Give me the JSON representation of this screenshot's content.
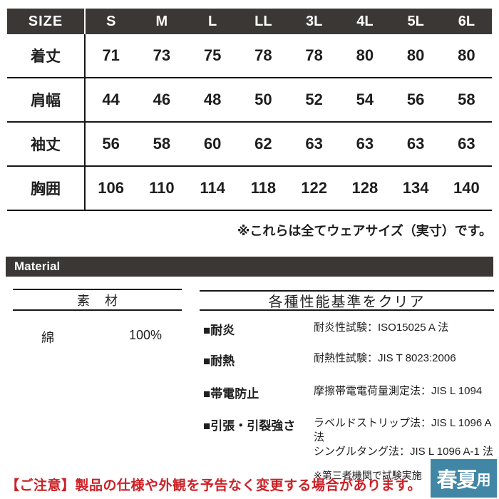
{
  "size_table": {
    "header": [
      "SIZE",
      "S",
      "M",
      "L",
      "LL",
      "3L",
      "4L",
      "5L",
      "6L"
    ],
    "rows": [
      {
        "label": "着丈",
        "values": [
          "71",
          "73",
          "75",
          "78",
          "78",
          "80",
          "80",
          "80"
        ]
      },
      {
        "label": "肩幅",
        "values": [
          "44",
          "46",
          "48",
          "50",
          "52",
          "54",
          "56",
          "58"
        ]
      },
      {
        "label": "袖丈",
        "values": [
          "56",
          "58",
          "60",
          "62",
          "63",
          "63",
          "63",
          "63"
        ]
      },
      {
        "label": "胸囲",
        "values": [
          "106",
          "110",
          "114",
          "118",
          "122",
          "128",
          "134",
          "140"
        ]
      }
    ],
    "note": "※これらは全てウェアサイズ（実寸）です。"
  },
  "material_section": {
    "bar_label": "Material",
    "composition": {
      "header": "素 材",
      "rows": [
        {
          "name": "綿",
          "value": "100%"
        }
      ]
    },
    "performance": {
      "header": "各種性能基準をクリア",
      "items": [
        {
          "label": "■耐炎",
          "description": "耐炎性試験：ISO15025 A 法"
        },
        {
          "label": "■耐熱",
          "description": "耐熱性試験：JIS T 8023:2006"
        },
        {
          "label": "■帯電防止",
          "description": "摩擦帯電電荷量測定法：JIS L 1094"
        },
        {
          "label": "■引張・引裂強さ",
          "description": "ラベルドストリップ法：JIS L 1096 A 法\nシングルタング法：JIS L 1096 A-1 法"
        }
      ],
      "note": "※第三者機関で試験実施"
    }
  },
  "footer": {
    "notice": "【ご注意】製品の仕様や外観を予告なく変更する場合があります。",
    "season_badge": {
      "main": "春夏",
      "suffix": "用"
    }
  },
  "colors": {
    "header_bar_bg": "#3a3735",
    "notice_red": "#cc2127",
    "badge_teal": "#4187a5"
  }
}
